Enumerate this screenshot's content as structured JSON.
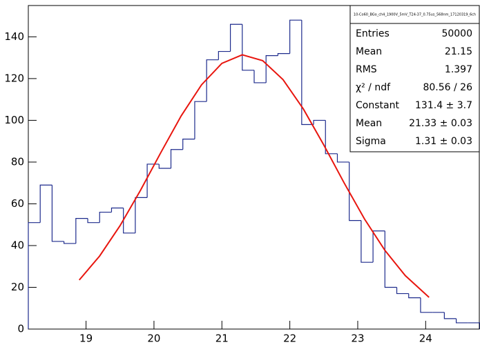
{
  "chart_data": {
    "type": "histogram",
    "bins": [
      18.15,
      18.325,
      18.5,
      18.675,
      18.85,
      19.025,
      19.2,
      19.375,
      19.55,
      19.725,
      19.9,
      20.075,
      20.25,
      20.425,
      20.6,
      20.775,
      20.95,
      21.125,
      21.3,
      21.475,
      21.65,
      21.825,
      22.0,
      22.175,
      22.35,
      22.525,
      22.7,
      22.875,
      23.05,
      23.225,
      23.4,
      23.575,
      23.75,
      23.925,
      24.1,
      24.275,
      24.45,
      24.625,
      24.8
    ],
    "values": [
      51,
      69,
      42,
      41,
      53,
      51,
      56,
      58,
      46,
      63,
      79,
      77,
      86,
      91,
      109,
      129,
      133,
      146,
      124,
      118,
      131,
      132,
      148,
      98,
      100,
      84,
      80,
      52,
      32,
      47,
      20,
      17,
      15,
      8,
      8,
      5,
      3,
      3
    ],
    "color": "#1c2a8c",
    "fit": {
      "color": "#e8150e",
      "x": [
        18.9,
        19.2,
        19.5,
        19.8,
        20.1,
        20.4,
        20.7,
        21.0,
        21.3,
        21.6,
        21.9,
        22.2,
        22.5,
        22.8,
        23.1,
        23.4,
        23.7,
        24.05
      ],
      "values": [
        23.5,
        35.0,
        49.5,
        66.4,
        84.5,
        102.1,
        117.0,
        127.3,
        131.4,
        128.6,
        119.5,
        105.4,
        88.2,
        70.0,
        52.7,
        37.7,
        25.6,
        15.2
      ]
    },
    "xlim": [
      18.15,
      24.8
    ],
    "xticks": [
      19,
      20,
      21,
      22,
      23,
      24
    ],
    "ylim": [
      0,
      155
    ],
    "yticks": [
      0,
      20,
      40,
      60,
      80,
      100,
      120,
      140
    ],
    "stats": {
      "title": "10-Co60_BGo_ch4_1900V_5mV_T24-37_0.75us_568nm_17120319_6ch",
      "rows": [
        [
          "Entries",
          "50000"
        ],
        [
          "Mean",
          "21.15"
        ],
        [
          "RMS",
          "1.397"
        ],
        [
          "χ² / ndf",
          "80.56 / 26"
        ],
        [
          "Constant",
          "131.4 ± 3.7"
        ],
        [
          "Mean",
          "21.33 ± 0.03"
        ],
        [
          "Sigma",
          "1.31 ± 0.03"
        ]
      ]
    }
  }
}
